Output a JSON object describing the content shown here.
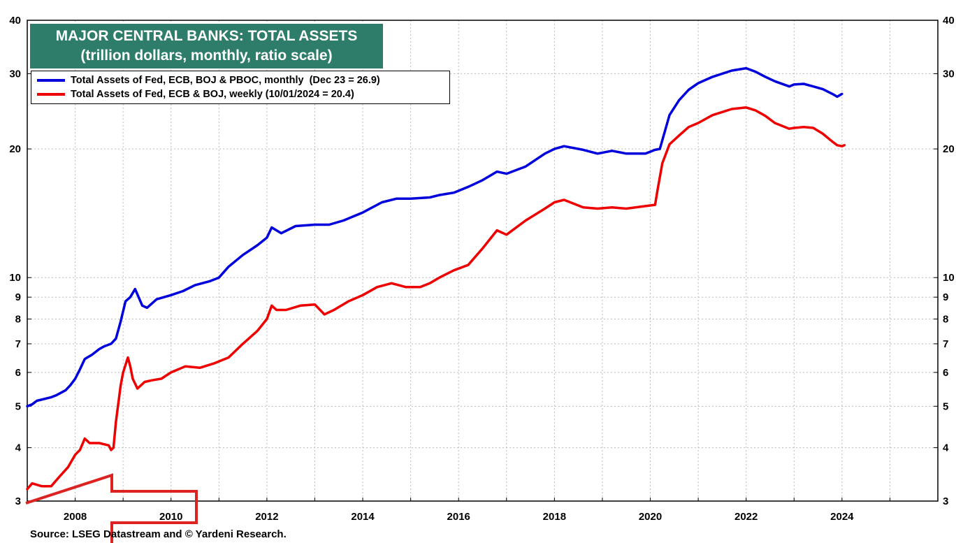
{
  "chart_data": {
    "type": "line",
    "title": "MAJOR CENTRAL BANKS: TOTAL ASSETS",
    "subtitle": "(trillion dollars, monthly, ratio scale)",
    "y_scale": "log",
    "ylim": [
      3,
      40
    ],
    "xlim": [
      2007.0,
      2026.0
    ],
    "y_ticks": [
      3,
      4,
      5,
      6,
      7,
      8,
      9,
      10,
      20,
      30,
      40
    ],
    "x_ticks": [
      2008,
      2010,
      2012,
      2014,
      2016,
      2018,
      2020,
      2022,
      2024
    ],
    "grid": true,
    "legend_placement": "top-left",
    "series": [
      {
        "name": "Total Assets of Fed, ECB, BOJ & PBOC, monthly  (Dec 23 = 26.9)",
        "color": "#0000dd",
        "x": [
          2007.0,
          2007.1,
          2007.2,
          2007.5,
          2007.6,
          2007.8,
          2007.9,
          2008.0,
          2008.1,
          2008.2,
          2008.35,
          2008.5,
          2008.6,
          2008.75,
          2008.85,
          2008.95,
          2009.05,
          2009.15,
          2009.25,
          2009.4,
          2009.5,
          2009.7,
          2010.0,
          2010.25,
          2010.5,
          2010.8,
          2011.0,
          2011.2,
          2011.5,
          2011.8,
          2012.0,
          2012.1,
          2012.3,
          2012.6,
          2013.0,
          2013.3,
          2013.6,
          2014.0,
          2014.4,
          2014.7,
          2015.0,
          2015.4,
          2015.6,
          2015.9,
          2016.2,
          2016.5,
          2016.8,
          2017.0,
          2017.4,
          2017.8,
          2018.0,
          2018.2,
          2018.6,
          2018.9,
          2019.2,
          2019.5,
          2019.9,
          2020.1,
          2020.2,
          2020.4,
          2020.6,
          2020.8,
          2021.0,
          2021.3,
          2021.7,
          2022.0,
          2022.2,
          2022.4,
          2022.6,
          2022.9,
          2023.0,
          2023.2,
          2023.4,
          2023.6,
          2023.8,
          2023.9,
          2024.0
        ],
        "values": [
          5.0,
          5.05,
          5.15,
          5.25,
          5.3,
          5.45,
          5.6,
          5.8,
          6.1,
          6.45,
          6.6,
          6.8,
          6.9,
          7.0,
          7.2,
          7.9,
          8.8,
          9.0,
          9.4,
          8.6,
          8.5,
          8.9,
          9.1,
          9.3,
          9.6,
          9.8,
          10.0,
          10.6,
          11.3,
          11.9,
          12.4,
          13.1,
          12.7,
          13.2,
          13.3,
          13.3,
          13.6,
          14.2,
          15.0,
          15.3,
          15.3,
          15.4,
          15.6,
          15.8,
          16.3,
          16.9,
          17.7,
          17.5,
          18.2,
          19.5,
          20.0,
          20.3,
          19.9,
          19.5,
          19.8,
          19.5,
          19.5,
          19.9,
          20.0,
          24.0,
          26.0,
          27.5,
          28.5,
          29.5,
          30.5,
          30.9,
          30.3,
          29.5,
          28.8,
          28.0,
          28.3,
          28.4,
          28.0,
          27.6,
          26.9,
          26.5,
          26.9
        ]
      },
      {
        "name": "Total Assets of Fed, ECB & BOJ, weekly (10/01/2024 = 20.4)",
        "color": "#ee0000",
        "x": [
          2007.0,
          2007.1,
          2007.3,
          2007.5,
          2007.7,
          2007.85,
          2008.0,
          2008.1,
          2008.2,
          2008.3,
          2008.5,
          2008.7,
          2008.75,
          2008.8,
          2008.85,
          2008.95,
          2009.0,
          2009.1,
          2009.15,
          2009.2,
          2009.3,
          2009.45,
          2009.6,
          2009.8,
          2010.0,
          2010.3,
          2010.6,
          2010.9,
          2011.2,
          2011.5,
          2011.8,
          2012.0,
          2012.1,
          2012.2,
          2012.4,
          2012.7,
          2013.0,
          2013.2,
          2013.4,
          2013.7,
          2014.0,
          2014.3,
          2014.6,
          2014.9,
          2015.2,
          2015.4,
          2015.6,
          2015.9,
          2016.2,
          2016.5,
          2016.8,
          2017.0,
          2017.4,
          2017.8,
          2018.0,
          2018.2,
          2018.6,
          2018.9,
          2019.2,
          2019.5,
          2019.9,
          2020.1,
          2020.15,
          2020.25,
          2020.4,
          2020.6,
          2020.8,
          2021.0,
          2021.3,
          2021.7,
          2022.0,
          2022.2,
          2022.4,
          2022.6,
          2022.9,
          2023.0,
          2023.2,
          2023.4,
          2023.6,
          2023.8,
          2023.9,
          2024.0,
          2024.05
        ],
        "values": [
          3.2,
          3.3,
          3.25,
          3.25,
          3.45,
          3.6,
          3.85,
          3.95,
          4.2,
          4.1,
          4.1,
          4.05,
          3.95,
          4.0,
          4.6,
          5.6,
          6.0,
          6.5,
          6.2,
          5.8,
          5.5,
          5.7,
          5.75,
          5.8,
          6.0,
          6.2,
          6.15,
          6.3,
          6.5,
          7.0,
          7.5,
          8.0,
          8.6,
          8.4,
          8.4,
          8.6,
          8.65,
          8.2,
          8.4,
          8.8,
          9.1,
          9.5,
          9.7,
          9.5,
          9.5,
          9.7,
          10.0,
          10.4,
          10.7,
          11.7,
          12.9,
          12.6,
          13.6,
          14.5,
          15.0,
          15.2,
          14.6,
          14.5,
          14.6,
          14.5,
          14.7,
          14.8,
          16.0,
          18.5,
          20.5,
          21.5,
          22.5,
          23.0,
          24.0,
          24.8,
          25.0,
          24.6,
          23.9,
          23.0,
          22.3,
          22.4,
          22.5,
          22.4,
          21.7,
          20.8,
          20.4,
          20.3,
          20.4
        ]
      }
    ],
    "source": "Source: LSEG Datastream and © Yardeni Research."
  },
  "annotation": {
    "arrow_color": "#dd2222",
    "arrow_icon": "left-arrow-outline-icon"
  }
}
